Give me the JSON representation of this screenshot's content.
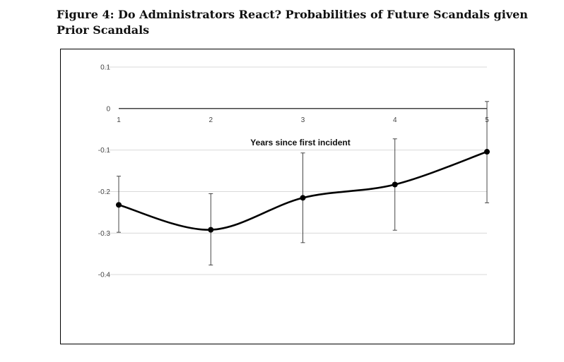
{
  "figure": {
    "title_line1": "Figure 4: Do Administrators React? Probabilities of Future Scandals given",
    "title_line2": "Prior Scandals"
  },
  "chart_data": {
    "type": "line",
    "x": [
      1,
      2,
      3,
      4,
      5
    ],
    "x_tick_labels": [
      "1",
      "2",
      "3",
      "4",
      "5"
    ],
    "y_tick_labels": [
      "0.1",
      "0",
      "-0.1",
      "-0.2",
      "-0.3",
      "-0.4"
    ],
    "y_ticks": [
      0.1,
      0,
      -0.1,
      -0.2,
      -0.3,
      -0.4
    ],
    "ylim": [
      -0.5,
      0.1
    ],
    "xlabel": "Years since first incident",
    "ylabel": "",
    "title": "",
    "series": [
      {
        "values": [
          -0.232,
          -0.292,
          -0.215,
          -0.183,
          -0.104
        ],
        "error_low": [
          -0.298,
          -0.377,
          -0.323,
          -0.293,
          -0.227
        ],
        "error_high": [
          -0.163,
          -0.205,
          -0.107,
          -0.073,
          0.017
        ],
        "color": "#000000",
        "smoothed": true,
        "markers": true
      }
    ],
    "grid": "horizontal",
    "legend": "none"
  }
}
